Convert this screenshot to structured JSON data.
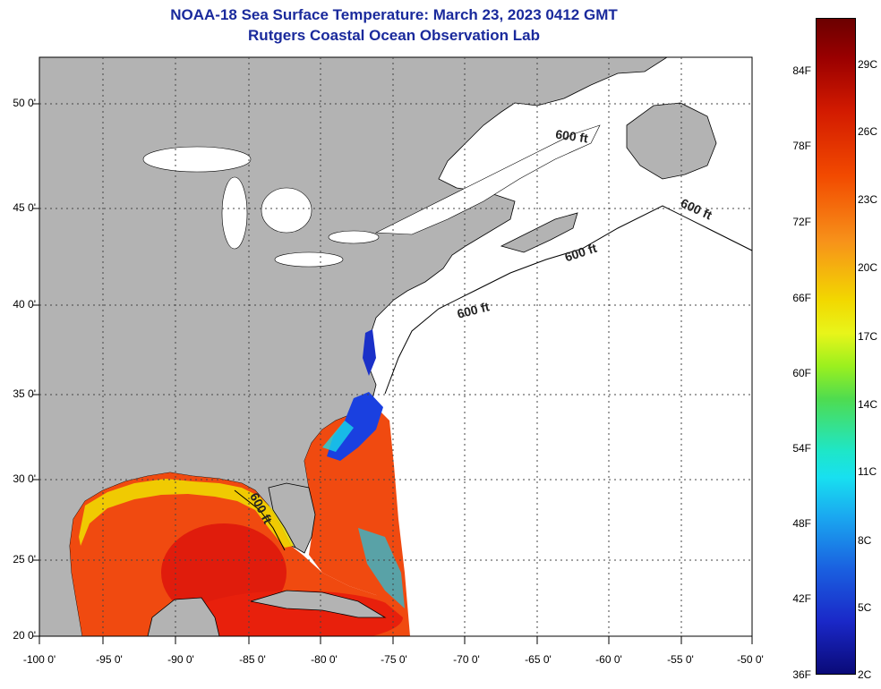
{
  "title": "NOAA-18 Sea Surface Temperature:  March 23, 2023 0412 GMT",
  "subtitle": "Rutgers Coastal Ocean Observation Lab",
  "lat_labels": [
    "50 0'",
    "45 0'",
    "40 0'",
    "35 0'",
    "30 0'",
    "25 0'",
    "20 0'"
  ],
  "lon_labels": [
    "-100 0'",
    "-95 0'",
    "-90 0'",
    "-85 0'",
    "-80 0'",
    "-75 0'",
    "-70 0'",
    "-65 0'",
    "-60 0'",
    "-55 0'",
    "-50 0'"
  ],
  "contour_label": "600 ft",
  "colorbar": {
    "fahrenheit": [
      "84F",
      "78F",
      "72F",
      "66F",
      "60F",
      "54F",
      "48F",
      "42F",
      "36F"
    ],
    "celsius": [
      "29C",
      "26C",
      "23C",
      "20C",
      "17C",
      "14C",
      "11C",
      "8C",
      "5C",
      "2C"
    ]
  },
  "colors": {
    "title": "#1a2a9c",
    "land": "#b3b3b3",
    "no_data_ocean": "#ffffff",
    "gulf_warm": "#f04a10",
    "gulf_core": "#e01c0c",
    "coastal_cool": "#f0e000",
    "gulfstream_cold": "#1a40e0"
  }
}
